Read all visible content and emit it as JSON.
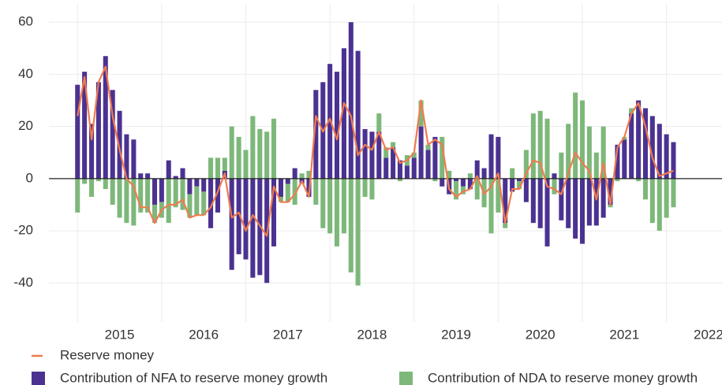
{
  "chart_data": {
    "type": "bar",
    "x": [
      2015,
      2015.083,
      2015.167,
      2015.25,
      2015.333,
      2015.417,
      2015.5,
      2015.583,
      2015.667,
      2015.75,
      2015.833,
      2015.917,
      2016,
      2016.083,
      2016.167,
      2016.25,
      2016.333,
      2016.417,
      2016.5,
      2016.583,
      2016.667,
      2016.75,
      2016.833,
      2016.917,
      2017,
      2017.083,
      2017.167,
      2017.25,
      2017.333,
      2017.417,
      2017.5,
      2017.583,
      2017.667,
      2017.75,
      2017.833,
      2017.917,
      2018,
      2018.083,
      2018.167,
      2018.25,
      2018.333,
      2018.417,
      2018.5,
      2018.583,
      2018.667,
      2018.75,
      2018.833,
      2018.917,
      2019,
      2019.083,
      2019.167,
      2019.25,
      2019.333,
      2019.417,
      2019.5,
      2019.583,
      2019.667,
      2019.75,
      2019.833,
      2019.917,
      2020,
      2020.083,
      2020.167,
      2020.25,
      2020.333,
      2020.417,
      2020.5,
      2020.583,
      2020.667,
      2020.75,
      2020.833,
      2020.917,
      2021,
      2021.083,
      2021.167,
      2021.25,
      2021.333,
      2021.417,
      2021.5,
      2021.583,
      2021.667,
      2021.75,
      2021.833,
      2021.917,
      2022,
      2022.083
    ],
    "series": [
      {
        "name": "Reserve money",
        "type": "line",
        "color": "#f07b4f",
        "values": [
          24,
          39,
          15,
          37,
          43,
          24,
          11,
          0,
          -3,
          -11,
          -11,
          -17,
          -12,
          -10,
          -10,
          -8,
          -15,
          -14,
          -14,
          -11,
          -5,
          2,
          -15,
          -13,
          -20,
          -14,
          -18,
          -22,
          -3,
          -9,
          -9,
          -6,
          -1,
          -7,
          24,
          18,
          23,
          15,
          29,
          24,
          9,
          13,
          11,
          18,
          11,
          12,
          6,
          7,
          10,
          30,
          13,
          15,
          13,
          -4,
          -7,
          -5,
          -4,
          1,
          -6,
          -3,
          2,
          -17,
          -4,
          -4,
          2,
          7,
          6,
          -3,
          -4,
          -6,
          2,
          10,
          6,
          3,
          -8,
          6,
          -10,
          12,
          16,
          25,
          29,
          20,
          8,
          1,
          2,
          3
        ]
      },
      {
        "name": "Contribution of NFA to reserve money growth",
        "type": "bar",
        "color": "#4b3291",
        "values": [
          36,
          41,
          21,
          37,
          47,
          34,
          26,
          17,
          15,
          2,
          2,
          -10,
          -9,
          7,
          1,
          4,
          -6,
          -3,
          -5,
          -19,
          -13,
          3,
          -35,
          -29,
          -31,
          -38,
          -37,
          -40,
          -26,
          -7,
          -2,
          4,
          -2,
          -7,
          34,
          37,
          44,
          41,
          50,
          60,
          49,
          19,
          18,
          18,
          8,
          12,
          7,
          5,
          8,
          20,
          11,
          16,
          -3,
          -6,
          -1,
          -3,
          -4,
          7,
          4,
          17,
          16,
          -17,
          -5,
          -1,
          -9,
          -17,
          -19,
          -26,
          2,
          -16,
          -19,
          -23,
          -25,
          -18,
          -18,
          -15,
          -10,
          13,
          15,
          25,
          30,
          27,
          24,
          21,
          17,
          14
        ]
      },
      {
        "name": "Contribution of NDA to reserve money growth",
        "type": "bar",
        "color": "#7db87a",
        "values": [
          -13,
          -2,
          -7,
          -1,
          -4,
          -10,
          -15,
          -17,
          -18,
          -13,
          -13,
          -7,
          -6,
          -17,
          -11,
          -12,
          -9,
          -11,
          -9,
          8,
          8,
          5,
          20,
          16,
          11,
          24,
          19,
          18,
          23,
          -2,
          -7,
          -10,
          2,
          3,
          -10,
          -19,
          -21,
          -26,
          -21,
          -36,
          -41,
          -7,
          -8,
          7,
          4,
          2,
          -1,
          4,
          2,
          10,
          2,
          -1,
          16,
          3,
          -7,
          -3,
          2,
          -8,
          -11,
          -21,
          -13,
          -2,
          4,
          -3,
          11,
          25,
          26,
          23,
          -6,
          10,
          21,
          33,
          30,
          20,
          10,
          20,
          -1,
          -1,
          1,
          2,
          -1,
          -8,
          -17,
          -20,
          -15,
          -11
        ]
      }
    ],
    "xlim": [
      2014.66,
      2022.66
    ],
    "xticks": [
      2015,
      2016,
      2017,
      2018,
      2019,
      2020,
      2021,
      2022
    ],
    "ylim": [
      -55,
      67
    ],
    "yticks": [
      -40,
      -20,
      0,
      20,
      40,
      60
    ],
    "grid": true
  }
}
